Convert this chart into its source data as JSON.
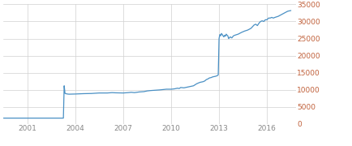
{
  "line_color": "#4a90c4",
  "background_color": "#ffffff",
  "grid_color": "#d0d0d0",
  "tick_color_x": "#888888",
  "tick_color_y": "#c0603a",
  "xlim": [
    1999.5,
    2017.8
  ],
  "ylim": [
    0,
    35000
  ],
  "yticks": [
    0,
    5000,
    10000,
    15000,
    20000,
    25000,
    30000,
    35000
  ],
  "xtick_labels": [
    "2001",
    "2004",
    "2007",
    "2010",
    "2013",
    "2016"
  ],
  "xtick_positions": [
    2001,
    2004,
    2007,
    2010,
    2013,
    2016
  ],
  "data": [
    [
      1999.5,
      1750
    ],
    [
      2000.0,
      1750
    ],
    [
      2000.5,
      1750
    ],
    [
      2001.0,
      1750
    ],
    [
      2001.5,
      1750
    ],
    [
      2002.0,
      1750
    ],
    [
      2002.5,
      1750
    ],
    [
      2003.0,
      1750
    ],
    [
      2003.25,
      1750
    ],
    [
      2003.3,
      11200
    ],
    [
      2003.35,
      9000
    ],
    [
      2003.4,
      8900
    ],
    [
      2003.5,
      8800
    ],
    [
      2003.6,
      8750
    ],
    [
      2004.0,
      8800
    ],
    [
      2004.5,
      8900
    ],
    [
      2005.0,
      8950
    ],
    [
      2005.5,
      9100
    ],
    [
      2006.0,
      9100
    ],
    [
      2006.3,
      9200
    ],
    [
      2006.5,
      9150
    ],
    [
      2007.0,
      9100
    ],
    [
      2007.3,
      9200
    ],
    [
      2007.5,
      9300
    ],
    [
      2007.7,
      9200
    ],
    [
      2008.0,
      9400
    ],
    [
      2008.3,
      9500
    ],
    [
      2008.5,
      9700
    ],
    [
      2008.7,
      9800
    ],
    [
      2009.0,
      9900
    ],
    [
      2009.3,
      10000
    ],
    [
      2009.5,
      10100
    ],
    [
      2009.7,
      10200
    ],
    [
      2010.0,
      10200
    ],
    [
      2010.2,
      10300
    ],
    [
      2010.4,
      10500
    ],
    [
      2010.5,
      10400
    ],
    [
      2010.6,
      10700
    ],
    [
      2010.8,
      10600
    ],
    [
      2011.0,
      10800
    ],
    [
      2011.2,
      11000
    ],
    [
      2011.4,
      11200
    ],
    [
      2011.5,
      11500
    ],
    [
      2011.6,
      11800
    ],
    [
      2011.8,
      12200
    ],
    [
      2012.0,
      12400
    ],
    [
      2012.1,
      12600
    ],
    [
      2012.2,
      13000
    ],
    [
      2012.3,
      13200
    ],
    [
      2012.4,
      13500
    ],
    [
      2012.5,
      13600
    ],
    [
      2012.6,
      13800
    ],
    [
      2012.7,
      13900
    ],
    [
      2012.8,
      14000
    ],
    [
      2012.9,
      14200
    ],
    [
      2012.95,
      14400
    ],
    [
      2013.0,
      25000
    ],
    [
      2013.05,
      26200
    ],
    [
      2013.1,
      25800
    ],
    [
      2013.15,
      26500
    ],
    [
      2013.2,
      26200
    ],
    [
      2013.25,
      25800
    ],
    [
      2013.3,
      25500
    ],
    [
      2013.35,
      26000
    ],
    [
      2013.4,
      25700
    ],
    [
      2013.45,
      26300
    ],
    [
      2013.5,
      26000
    ],
    [
      2013.55,
      25800
    ],
    [
      2013.6,
      25000
    ],
    [
      2013.7,
      25500
    ],
    [
      2013.8,
      25200
    ],
    [
      2013.9,
      25800
    ],
    [
      2014.0,
      26000
    ],
    [
      2014.2,
      26300
    ],
    [
      2014.4,
      26800
    ],
    [
      2014.6,
      27200
    ],
    [
      2014.8,
      27500
    ],
    [
      2015.0,
      28000
    ],
    [
      2015.1,
      28500
    ],
    [
      2015.2,
      29000
    ],
    [
      2015.3,
      29200
    ],
    [
      2015.4,
      28800
    ],
    [
      2015.5,
      29500
    ],
    [
      2015.6,
      30000
    ],
    [
      2015.7,
      30200
    ],
    [
      2015.8,
      30000
    ],
    [
      2015.9,
      30500
    ],
    [
      2016.0,
      30500
    ],
    [
      2016.1,
      31000
    ],
    [
      2016.2,
      31000
    ],
    [
      2016.3,
      31200
    ],
    [
      2016.4,
      31000
    ],
    [
      2016.5,
      31200
    ],
    [
      2016.7,
      31500
    ],
    [
      2016.9,
      32000
    ],
    [
      2017.1,
      32500
    ],
    [
      2017.3,
      33000
    ],
    [
      2017.5,
      33200
    ]
  ]
}
